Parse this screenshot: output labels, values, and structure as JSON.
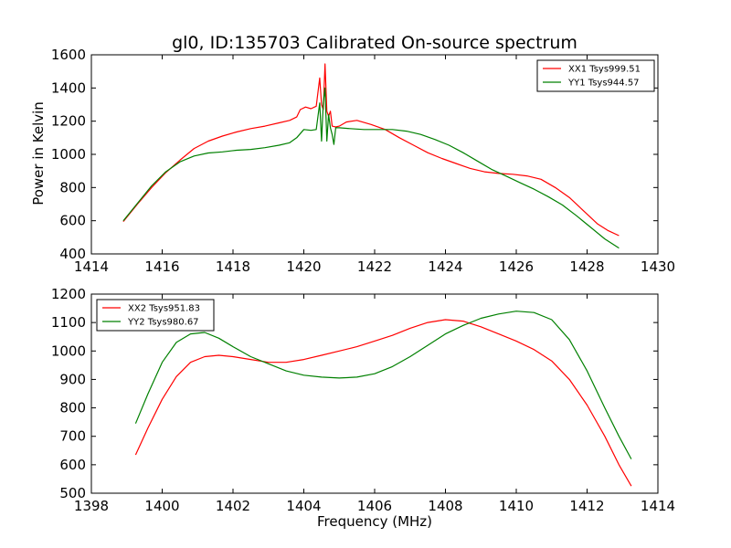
{
  "chart_data": [
    {
      "type": "line",
      "title": "gl0, ID:135703 Calibrated On-source spectrum",
      "xlabel": "",
      "ylabel": "Power in Kelvin",
      "xlim": [
        1414,
        1430
      ],
      "ylim": [
        400,
        1600
      ],
      "xticks": [
        "1414",
        "1416",
        "1418",
        "1420",
        "1422",
        "1424",
        "1426",
        "1428",
        "1430"
      ],
      "yticks": [
        "400",
        "600",
        "800",
        "1000",
        "1200",
        "1400",
        "1600"
      ],
      "legend_position": "top-right",
      "grid": false,
      "series": [
        {
          "name": "XX1 Tsys999.51",
          "color": "#ff0000",
          "x": [
            1414.9,
            1415.3,
            1415.7,
            1416.1,
            1416.5,
            1416.9,
            1417.3,
            1417.7,
            1418.1,
            1418.5,
            1418.9,
            1419.3,
            1419.6,
            1419.8,
            1419.9,
            1420.05,
            1420.2,
            1420.35,
            1420.45,
            1420.5,
            1420.55,
            1420.6,
            1420.65,
            1420.7,
            1420.75,
            1420.8,
            1420.9,
            1421.0,
            1421.2,
            1421.5,
            1421.9,
            1422.3,
            1422.7,
            1423.1,
            1423.5,
            1423.9,
            1424.3,
            1424.7,
            1425.1,
            1425.5,
            1425.9,
            1426.3,
            1426.7,
            1427.1,
            1427.5,
            1427.9,
            1428.3,
            1428.6,
            1428.9
          ],
          "y": [
            595,
            700,
            800,
            890,
            965,
            1035,
            1080,
            1110,
            1135,
            1155,
            1170,
            1190,
            1205,
            1225,
            1270,
            1285,
            1275,
            1290,
            1460,
            1300,
            1270,
            1545,
            1260,
            1230,
            1260,
            1170,
            1165,
            1170,
            1195,
            1205,
            1180,
            1150,
            1100,
            1055,
            1010,
            975,
            945,
            915,
            895,
            885,
            880,
            870,
            850,
            800,
            740,
            660,
            580,
            540,
            510
          ]
        },
        {
          "name": "YY1 Tsys944.57",
          "color": "#008000",
          "x": [
            1414.9,
            1415.3,
            1415.7,
            1416.1,
            1416.5,
            1416.9,
            1417.3,
            1417.7,
            1418.1,
            1418.5,
            1418.9,
            1419.3,
            1419.6,
            1419.8,
            1420.0,
            1420.2,
            1420.35,
            1420.45,
            1420.5,
            1420.55,
            1420.6,
            1420.65,
            1420.7,
            1420.75,
            1420.8,
            1420.85,
            1420.9,
            1421.0,
            1421.3,
            1421.7,
            1422.1,
            1422.5,
            1422.9,
            1423.3,
            1423.7,
            1424.1,
            1424.5,
            1424.9,
            1425.3,
            1425.7,
            1426.1,
            1426.5,
            1426.9,
            1427.3,
            1427.7,
            1428.1,
            1428.5,
            1428.9
          ],
          "y": [
            600,
            705,
            810,
            895,
            955,
            990,
            1008,
            1015,
            1025,
            1030,
            1040,
            1055,
            1070,
            1100,
            1150,
            1145,
            1150,
            1310,
            1080,
            1310,
            1400,
            1080,
            1240,
            1160,
            1120,
            1060,
            1160,
            1160,
            1155,
            1150,
            1150,
            1150,
            1140,
            1120,
            1090,
            1055,
            1010,
            960,
            910,
            870,
            830,
            790,
            745,
            695,
            630,
            560,
            490,
            435
          ]
        }
      ]
    },
    {
      "type": "line",
      "title": "",
      "xlabel": "Frequency (MHz)",
      "ylabel": "",
      "xlim": [
        1398,
        1414
      ],
      "ylim": [
        500,
        1200
      ],
      "xticks": [
        "1398",
        "1400",
        "1402",
        "1404",
        "1406",
        "1408",
        "1410",
        "1412",
        "1414"
      ],
      "yticks": [
        "500",
        "600",
        "700",
        "800",
        "900",
        "1000",
        "1100",
        "1200"
      ],
      "legend_position": "top-left",
      "grid": false,
      "series": [
        {
          "name": "XX2 Tsys951.83",
          "color": "#ff0000",
          "x": [
            1399.25,
            1399.6,
            1400.0,
            1400.4,
            1400.8,
            1401.2,
            1401.6,
            1402.0,
            1402.5,
            1403.0,
            1403.5,
            1404.0,
            1404.5,
            1405.0,
            1405.5,
            1406.0,
            1406.5,
            1407.0,
            1407.5,
            1408.0,
            1408.5,
            1409.0,
            1409.5,
            1410.0,
            1410.5,
            1411.0,
            1411.5,
            1412.0,
            1412.5,
            1412.9,
            1413.25
          ],
          "y": [
            635,
            730,
            830,
            910,
            960,
            980,
            985,
            980,
            970,
            960,
            960,
            970,
            985,
            1000,
            1015,
            1035,
            1055,
            1080,
            1100,
            1110,
            1105,
            1085,
            1060,
            1035,
            1005,
            965,
            900,
            810,
            700,
            600,
            525
          ]
        },
        {
          "name": "YY2 Tsys980.67",
          "color": "#008000",
          "x": [
            1399.25,
            1399.6,
            1400.0,
            1400.4,
            1400.8,
            1401.2,
            1401.6,
            1402.0,
            1402.5,
            1403.0,
            1403.5,
            1404.0,
            1404.5,
            1405.0,
            1405.5,
            1406.0,
            1406.5,
            1407.0,
            1407.5,
            1408.0,
            1408.5,
            1409.0,
            1409.5,
            1410.0,
            1410.5,
            1411.0,
            1411.5,
            1412.0,
            1412.5,
            1412.9,
            1413.25
          ],
          "y": [
            745,
            850,
            960,
            1030,
            1060,
            1065,
            1045,
            1015,
            980,
            955,
            930,
            915,
            908,
            905,
            908,
            920,
            945,
            980,
            1020,
            1060,
            1090,
            1115,
            1130,
            1140,
            1135,
            1110,
            1040,
            930,
            800,
            700,
            620
          ]
        }
      ]
    }
  ]
}
